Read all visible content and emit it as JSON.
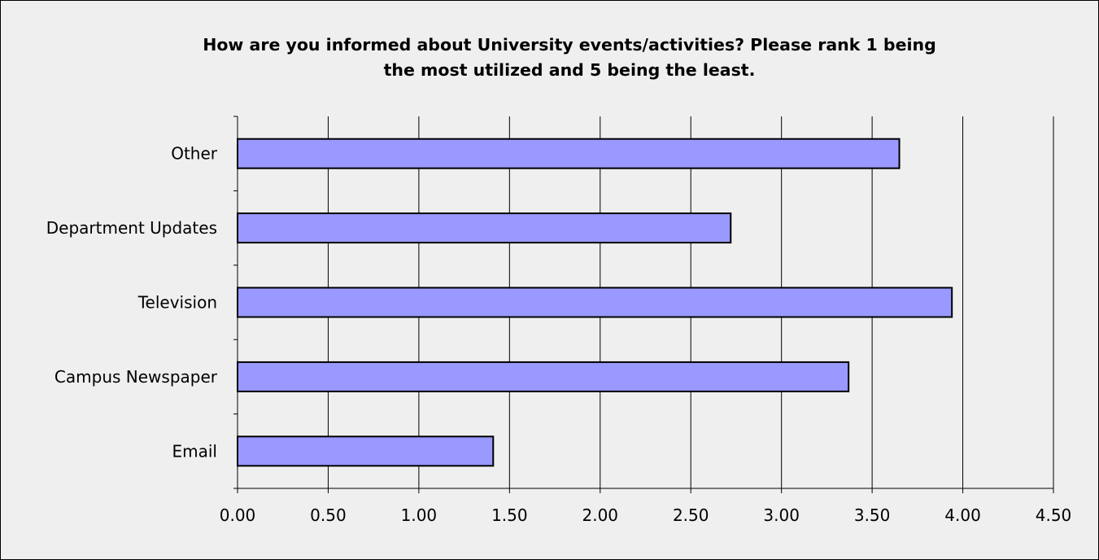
{
  "chart_data": {
    "type": "bar",
    "orientation": "horizontal",
    "title": "How are you informed about University events/activities?  Please rank 1 being the most utilized and 5 being the least.",
    "title_lines": [
      "How are you informed about University events/activities?  Please rank 1 being",
      "the most utilized and 5 being the least."
    ],
    "categories": [
      "Email",
      "Campus Newspaper",
      "Television",
      "Department Updates",
      "Other"
    ],
    "values": [
      1.41,
      3.37,
      3.94,
      2.72,
      3.65
    ],
    "xlim": [
      0,
      4.5
    ],
    "xticks": [
      "0.00",
      "0.50",
      "1.00",
      "1.50",
      "2.00",
      "2.50",
      "3.00",
      "3.50",
      "4.00",
      "4.50"
    ],
    "xlabel": "",
    "ylabel": "",
    "grid": "vertical",
    "legend": "none",
    "colors": {
      "bar_fill": "#9999ff",
      "bar_stroke": "#000000",
      "background": "#efefef"
    }
  }
}
